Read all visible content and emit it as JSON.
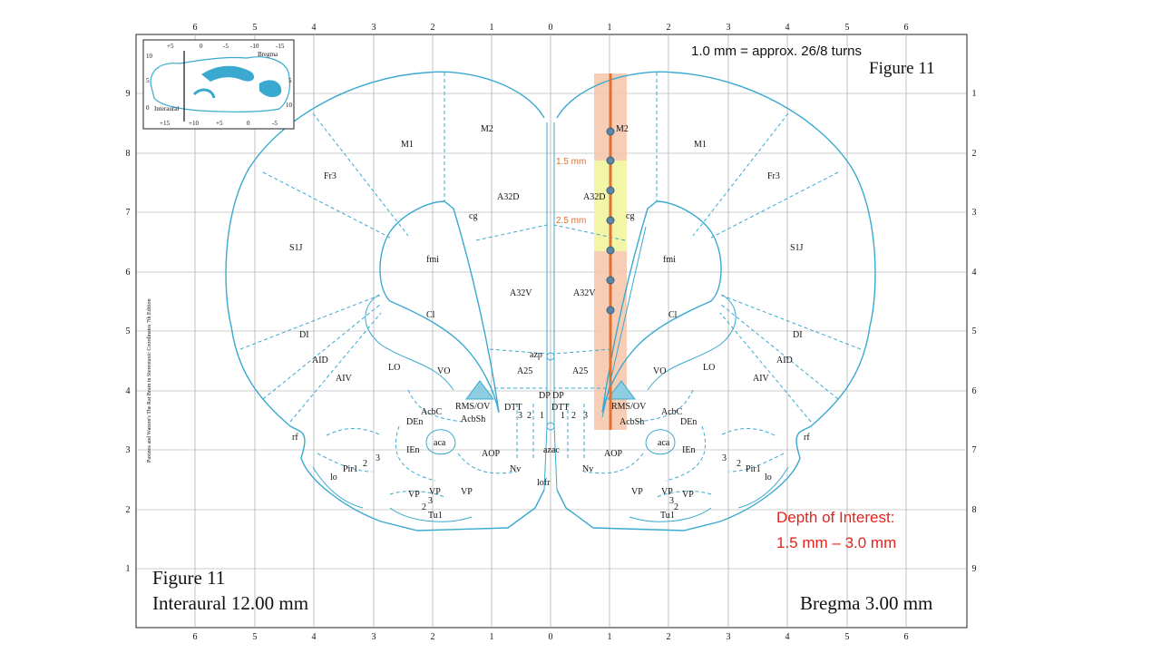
{
  "title": "Figure 11",
  "top_right_title": "Figure 11",
  "scale_note": "1.0 mm = approx. 26/8 turns",
  "bottom_left": {
    "figure": "Figure 11",
    "interaural": "Interaural 12.00 mm"
  },
  "bottom_right": {
    "bregma": "Bregma 3.00 mm"
  },
  "depth_of_interest": {
    "line1": "Depth of Interest:",
    "line2": "1.5 mm – 3.0 mm"
  },
  "depth_marks": {
    "a": "1.5 mm",
    "b": "2.5 mm"
  },
  "side_credit": "Paxinos and Watson's The Rat Brain in Stereotaxic Coordinates 7th Edition",
  "inset": {
    "labels": {
      "bregma": "Bregma",
      "interaural": "Interaural"
    },
    "top_ticks": [
      "+5",
      "0",
      "-5",
      "-10",
      "-15"
    ],
    "bottom_ticks": [
      "+15",
      "+10",
      "+5",
      "0",
      "-5"
    ],
    "left_ticks": [
      "10",
      "5",
      "0"
    ],
    "right_ticks": [
      "5",
      "10"
    ]
  },
  "axes": {
    "top": [
      "6",
      "5",
      "4",
      "3",
      "2",
      "1",
      "0",
      "1",
      "2",
      "3",
      "4",
      "5",
      "6"
    ],
    "bottom": [
      "6",
      "5",
      "4",
      "3",
      "2",
      "1",
      "0",
      "1",
      "2",
      "3",
      "4",
      "5",
      "6"
    ],
    "left": [
      "9",
      "8",
      "7",
      "6",
      "5",
      "4",
      "3",
      "2",
      "1"
    ],
    "right": [
      "1",
      "2",
      "3",
      "4",
      "5",
      "6",
      "7",
      "8",
      "9"
    ]
  },
  "regions": {
    "left": [
      "M1",
      "M2",
      "Fr3",
      "A32D",
      "cg",
      "S1J",
      "fmi",
      "A32V",
      "Cl",
      "DI",
      "AID",
      "AIV",
      "LO",
      "VO",
      "A25",
      "azp",
      "DP",
      "DTT",
      "3",
      "2",
      "1",
      "RMS/OV",
      "AcbC",
      "AcbSh",
      "DEn",
      "aca",
      "IEn",
      "AOP",
      "rf",
      "Pir1",
      "2",
      "3",
      "lo",
      "Nv",
      "lofr",
      "azac",
      "VP",
      "VP",
      "VP",
      "3",
      "2",
      "Tu1"
    ],
    "right": [
      "M2",
      "M1",
      "Fr3",
      "A32D",
      "cg",
      "fmi",
      "S1J",
      "A32V",
      "Cl",
      "DI",
      "AID",
      "AIV",
      "LO",
      "VO",
      "A25",
      "DP",
      "DTT",
      "1",
      "2",
      "3",
      "RMS/OV",
      "AcbC",
      "AcbSh",
      "DEn",
      "aca",
      "IEn",
      "AOP",
      "rf",
      "Pir1",
      "2",
      "3",
      "lo",
      "Nv",
      "VP",
      "VP",
      "VP",
      "3",
      "2",
      "Tu1"
    ]
  },
  "colors": {
    "outline": "#3aa9cf",
    "grid": "#9a9a9a",
    "probe_shade": "#f6c6a8",
    "depth_highlight": "#f2f7a6",
    "probe_line": "#e0702f",
    "probe_points": "#5b86a8",
    "depth_text": "#e0702f",
    "doi_text": "#e8221b",
    "rms_fill": "#8fcde3"
  }
}
